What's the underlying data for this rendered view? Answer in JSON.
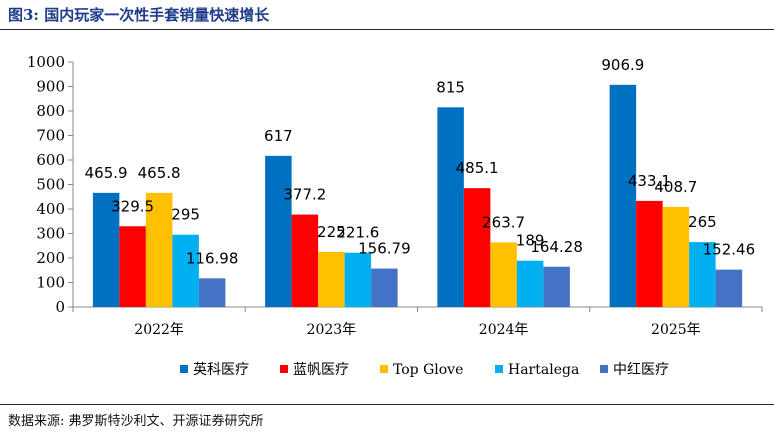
{
  "figure": {
    "title": "图3:  国内玩家一次性手套销量快速增长",
    "source": "数据来源:  弗罗斯特沙利文、开源证券研究所"
  },
  "chart_data": {
    "type": "bar",
    "categories": [
      "2022年",
      "2023年",
      "2024年",
      "2025年"
    ],
    "series": [
      {
        "name": "英科医疗",
        "color": "#0070c0",
        "values": [
          465.9,
          617,
          815,
          906.9
        ],
        "labels": [
          "465.9",
          "617",
          "815",
          "906.9"
        ]
      },
      {
        "name": "蓝帆医疗",
        "color": "#ff0000",
        "values": [
          329.5,
          377.2,
          485.1,
          433.1
        ],
        "labels": [
          "329.5",
          "377.2",
          "485.1",
          "433.1"
        ]
      },
      {
        "name": "Top Glove",
        "color": "#ffc000",
        "values": [
          465.8,
          225,
          263.7,
          408.7
        ],
        "labels": [
          "465.8",
          "225",
          "263.7",
          "408.7"
        ]
      },
      {
        "name": "Hartalega",
        "color": "#00b0f0",
        "values": [
          295,
          221.6,
          189,
          265
        ],
        "labels": [
          "295",
          "221.6",
          "189",
          "265"
        ]
      },
      {
        "name": "中红医疗",
        "color": "#4472c4",
        "values": [
          116.98,
          156.79,
          164.28,
          152.46
        ],
        "labels": [
          "116.98",
          "156.79",
          "164.28",
          "152.46"
        ]
      }
    ],
    "yticks": [
      "0",
      "100",
      "200",
      "300",
      "400",
      "500",
      "600",
      "700",
      "800",
      "900",
      "1000"
    ],
    "ylim": [
      0,
      1000
    ],
    "title": "",
    "xlabel": "",
    "ylabel": "",
    "grid": false,
    "legend_position": "bottom"
  }
}
